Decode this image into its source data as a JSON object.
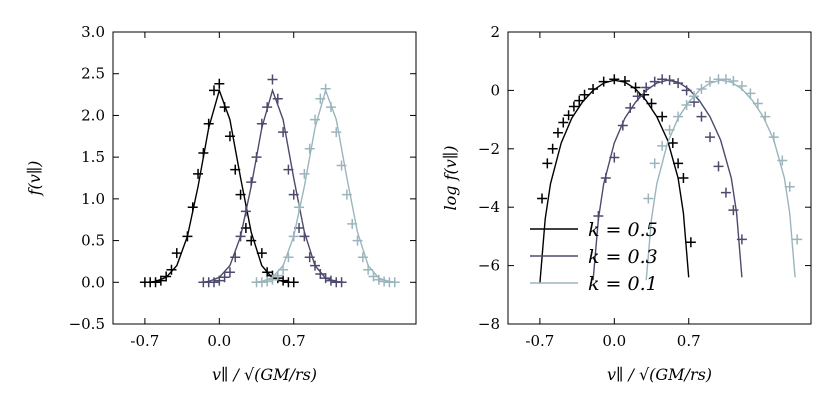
{
  "chart_data": [
    {
      "type": "line",
      "panel": "left",
      "xlabel": "v∥ / √(GM/rs)",
      "ylabel": "f(v∥)",
      "xlim": [
        -1.0,
        1.85
      ],
      "ylim": [
        -0.5,
        3.0
      ],
      "xticks": [
        -0.7,
        0.0,
        0.7
      ],
      "xtick_labels": [
        "-0.7",
        "0.0",
        "0.7"
      ],
      "yticks": [
        -0.5,
        0.0,
        0.5,
        1.0,
        1.5,
        2.0,
        2.5,
        3.0
      ],
      "ytick_labels": [
        "−0.5",
        "0.0",
        "0.5",
        "1.0",
        "1.5",
        "2.0",
        "2.5",
        "3.0"
      ],
      "grid": false,
      "series": [
        {
          "color": "#000000",
          "line": {
            "x": [
              -0.68,
              -0.6,
              -0.5,
              -0.4,
              -0.3,
              -0.2,
              -0.1,
              0.0,
              0.1,
              0.2,
              0.3,
              0.4,
              0.5,
              0.6,
              0.68
            ],
            "y": [
              0.0,
              0.01,
              0.06,
              0.2,
              0.55,
              1.15,
              1.85,
              2.3,
              1.95,
              1.25,
              0.6,
              0.2,
              0.05,
              0.01,
              0.0
            ]
          },
          "markers": {
            "x": [
              -0.7,
              -0.65,
              -0.6,
              -0.55,
              -0.5,
              -0.45,
              -0.4,
              -0.3,
              -0.25,
              -0.2,
              -0.15,
              -0.1,
              -0.05,
              0.0,
              0.05,
              0.1,
              0.15,
              0.2,
              0.25,
              0.3,
              0.4,
              0.45,
              0.5,
              0.55,
              0.6,
              0.65,
              0.7
            ],
            "y": [
              0.0,
              0.0,
              0.0,
              0.02,
              0.07,
              0.15,
              0.35,
              0.55,
              0.9,
              1.3,
              1.55,
              1.9,
              2.3,
              2.38,
              2.1,
              1.75,
              1.35,
              1.05,
              0.65,
              0.5,
              0.35,
              0.12,
              0.08,
              0.05,
              0.02,
              0.0,
              0.0
            ]
          }
        },
        {
          "color": "#4d4a6d",
          "line": {
            "x": [
              -0.18,
              -0.1,
              0.0,
              0.1,
              0.2,
              0.3,
              0.4,
              0.5,
              0.6,
              0.7,
              0.8,
              0.9,
              1.0,
              1.1,
              1.18
            ],
            "y": [
              0.0,
              0.01,
              0.06,
              0.2,
              0.55,
              1.15,
              1.85,
              2.3,
              1.95,
              1.25,
              0.6,
              0.2,
              0.05,
              0.01,
              0.0
            ]
          },
          "markers": {
            "x": [
              -0.15,
              -0.1,
              -0.05,
              0.0,
              0.05,
              0.1,
              0.15,
              0.2,
              0.25,
              0.3,
              0.35,
              0.4,
              0.45,
              0.5,
              0.55,
              0.6,
              0.65,
              0.7,
              0.75,
              0.8,
              0.85,
              0.9,
              0.95,
              1.0,
              1.05,
              1.1,
              1.15
            ],
            "y": [
              0.0,
              0.0,
              0.0,
              0.02,
              0.06,
              0.12,
              0.3,
              0.55,
              0.85,
              1.2,
              1.5,
              1.9,
              2.1,
              2.43,
              2.2,
              1.8,
              1.35,
              1.05,
              0.65,
              0.55,
              0.3,
              0.2,
              0.1,
              0.05,
              0.02,
              0.0,
              0.0
            ]
          }
        },
        {
          "color": "#9bb5bd",
          "line": {
            "x": [
              0.32,
              0.4,
              0.5,
              0.6,
              0.7,
              0.8,
              0.9,
              1.0,
              1.1,
              1.2,
              1.3,
              1.4,
              1.5,
              1.6,
              1.68
            ],
            "y": [
              0.0,
              0.01,
              0.06,
              0.2,
              0.55,
              1.15,
              1.85,
              2.3,
              1.95,
              1.25,
              0.6,
              0.2,
              0.05,
              0.01,
              0.0
            ]
          },
          "markers": {
            "x": [
              0.35,
              0.4,
              0.45,
              0.5,
              0.55,
              0.6,
              0.65,
              0.7,
              0.75,
              0.8,
              0.85,
              0.9,
              0.95,
              1.0,
              1.05,
              1.1,
              1.15,
              1.2,
              1.25,
              1.3,
              1.35,
              1.4,
              1.45,
              1.5,
              1.55,
              1.6,
              1.65
            ],
            "y": [
              0.0,
              0.0,
              0.01,
              0.03,
              0.08,
              0.15,
              0.3,
              0.55,
              0.9,
              1.3,
              1.6,
              1.95,
              2.2,
              2.32,
              2.1,
              1.8,
              1.4,
              1.05,
              0.7,
              0.5,
              0.3,
              0.15,
              0.07,
              0.03,
              0.01,
              0.0,
              0.0
            ]
          }
        }
      ]
    },
    {
      "type": "line",
      "panel": "right",
      "xlabel": "v∥ / √(GM/rs)",
      "ylabel": "log f(v∥)",
      "xlim": [
        -1.0,
        1.85
      ],
      "ylim": [
        -8,
        2
      ],
      "xticks": [
        -0.7,
        0.0,
        0.7
      ],
      "xtick_labels": [
        "-0.7",
        "0.0",
        "0.7"
      ],
      "yticks": [
        -8,
        -6,
        -4,
        -2,
        0,
        2
      ],
      "ytick_labels": [
        "−8",
        "−6",
        "−4",
        "−2",
        "0",
        "2"
      ],
      "grid": false,
      "legend_position": "lower-left",
      "series": [
        {
          "name": "k = 0.5",
          "color": "#000000",
          "line": {
            "x": [
              -0.7,
              -0.65,
              -0.6,
              -0.5,
              -0.4,
              -0.3,
              -0.2,
              -0.1,
              0.0,
              0.1,
              0.2,
              0.3,
              0.4,
              0.5,
              0.6,
              0.65,
              0.7
            ],
            "y": [
              -6.6,
              -4.4,
              -3.2,
              -1.8,
              -0.95,
              -0.4,
              0.0,
              0.25,
              0.35,
              0.28,
              0.05,
              -0.35,
              -0.9,
              -1.7,
              -3.0,
              -4.2,
              -6.4
            ]
          },
          "markers": {
            "x": [
              -0.68,
              -0.63,
              -0.58,
              -0.53,
              -0.48,
              -0.43,
              -0.38,
              -0.33,
              -0.28,
              -0.2,
              -0.1,
              0.0,
              0.1,
              0.2,
              0.28,
              0.35,
              0.45,
              0.55,
              0.6,
              0.65,
              0.72
            ],
            "y": [
              -3.7,
              -2.5,
              -2.0,
              -1.45,
              -1.1,
              -0.85,
              -0.55,
              -0.35,
              -0.15,
              0.05,
              0.3,
              0.38,
              0.32,
              0.1,
              -0.15,
              -0.45,
              -0.9,
              -1.8,
              -2.5,
              -3.0,
              -5.2
            ]
          }
        },
        {
          "name": "k = 0.3",
          "color": "#4d4a6d",
          "line": {
            "x": [
              -0.2,
              -0.15,
              -0.1,
              0.0,
              0.1,
              0.2,
              0.3,
              0.4,
              0.5,
              0.6,
              0.7,
              0.8,
              0.9,
              1.0,
              1.1,
              1.15,
              1.2
            ],
            "y": [
              -6.5,
              -4.4,
              -3.2,
              -1.8,
              -0.95,
              -0.4,
              0.0,
              0.25,
              0.35,
              0.28,
              0.05,
              -0.35,
              -0.9,
              -1.7,
              -3.0,
              -4.2,
              -6.4
            ]
          },
          "markers": {
            "x": [
              -0.15,
              -0.08,
              0.0,
              0.08,
              0.15,
              0.22,
              0.3,
              0.38,
              0.45,
              0.52,
              0.6,
              0.68,
              0.75,
              0.82,
              0.9,
              0.98,
              1.05,
              1.12,
              1.2
            ],
            "y": [
              -4.3,
              -3.0,
              -2.3,
              -1.2,
              -0.6,
              -0.2,
              0.1,
              0.3,
              0.38,
              0.35,
              0.25,
              0.0,
              -0.4,
              -0.9,
              -1.6,
              -2.6,
              -3.5,
              -4.1,
              -5.1
            ]
          }
        },
        {
          "name": "k = 0.1",
          "color": "#9bb5bd",
          "line": {
            "x": [
              0.3,
              0.35,
              0.4,
              0.5,
              0.6,
              0.7,
              0.8,
              0.9,
              1.0,
              1.1,
              1.2,
              1.3,
              1.4,
              1.5,
              1.6,
              1.65,
              1.7
            ],
            "y": [
              -6.5,
              -4.4,
              -3.2,
              -1.8,
              -0.95,
              -0.4,
              0.0,
              0.25,
              0.35,
              0.28,
              0.05,
              -0.35,
              -0.9,
              -1.7,
              -3.0,
              -4.2,
              -6.4
            ]
          },
          "markers": {
            "x": [
              0.32,
              0.38,
              0.45,
              0.52,
              0.6,
              0.68,
              0.75,
              0.82,
              0.9,
              0.98,
              1.05,
              1.12,
              1.2,
              1.28,
              1.35,
              1.42,
              1.5,
              1.58,
              1.65,
              1.72
            ],
            "y": [
              -3.7,
              -2.5,
              -1.9,
              -1.35,
              -0.9,
              -0.5,
              -0.2,
              0.05,
              0.3,
              0.38,
              0.38,
              0.32,
              0.15,
              -0.1,
              -0.45,
              -0.9,
              -1.6,
              -2.4,
              -3.3,
              -5.1
            ]
          }
        }
      ]
    }
  ]
}
